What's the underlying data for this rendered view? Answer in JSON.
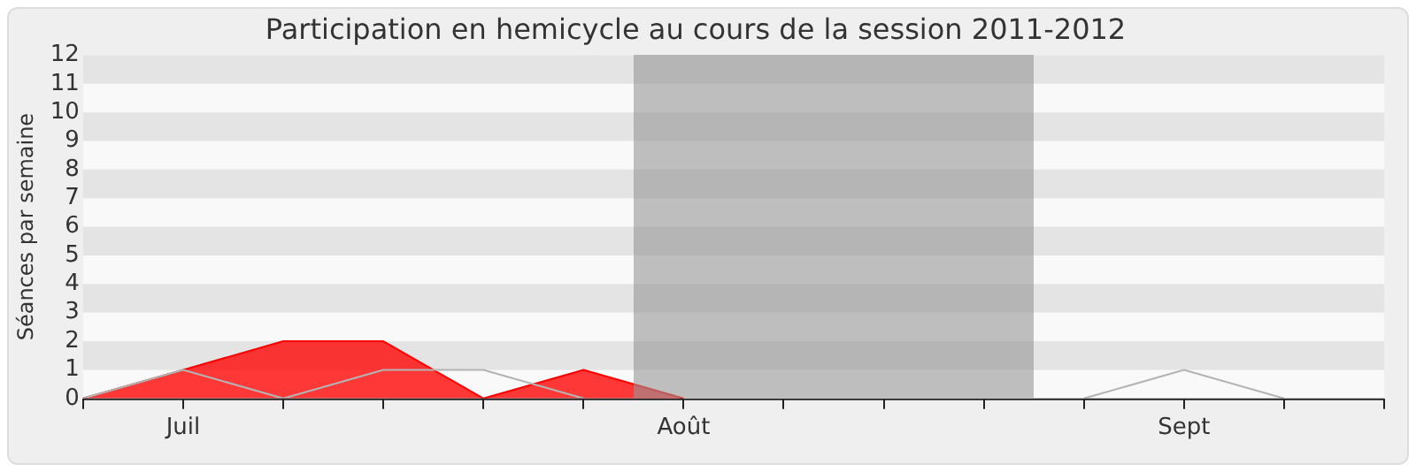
{
  "chart_data": {
    "type": "area",
    "title": "Participation en hemicycle au cours de la session 2011-2012",
    "ylabel": "Séances par semaine",
    "categories": [
      null,
      "Juil",
      null,
      null,
      null,
      null,
      "Août",
      null,
      null,
      null,
      null,
      "Sept",
      null,
      null
    ],
    "series": [
      {
        "color": "#ff0000",
        "values": [
          0,
          1,
          2,
          2,
          0,
          1,
          0,
          null,
          null,
          null,
          null,
          null,
          null,
          null
        ]
      },
      {
        "type": "line",
        "color": "#b4b4b4",
        "values": [
          0,
          1,
          0,
          1,
          1,
          0,
          null,
          null,
          null,
          null,
          0,
          1,
          0,
          null
        ]
      }
    ],
    "ylim": [
      0,
      12
    ],
    "yticks": [
      0,
      1,
      2,
      3,
      4,
      5,
      6,
      7,
      8,
      9,
      10,
      11,
      12
    ],
    "marker": "none"
  }
}
